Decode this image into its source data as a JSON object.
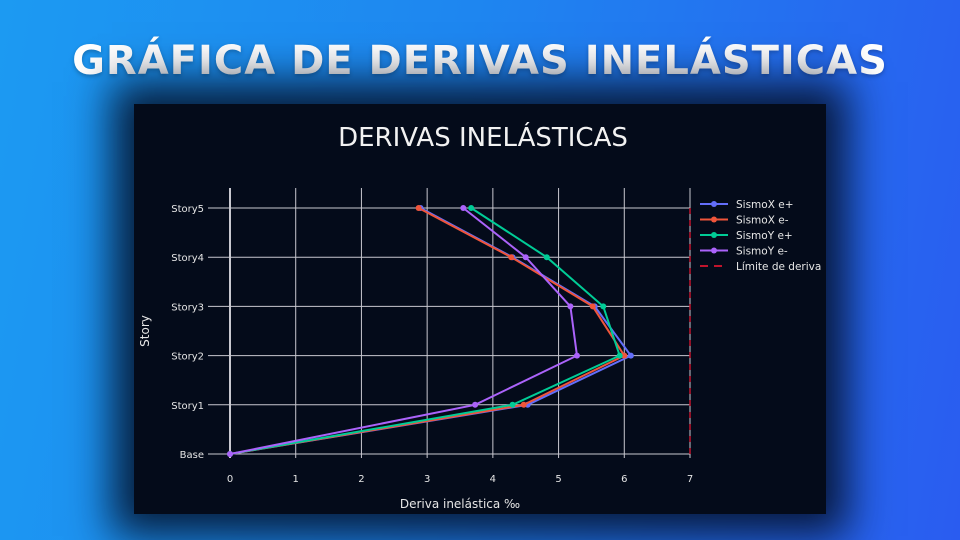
{
  "page": {
    "headline": "GRÁFICA DE DERIVAS INELÁSTICAS"
  },
  "colors": {
    "background_left": "#1c9af2",
    "background_right": "#2a5cf0",
    "panel": "#040b1a",
    "grid": "#c8c8d0",
    "limit": "#c0142c"
  },
  "chart_data": {
    "type": "line",
    "title": "DERIVAS INELÁSTICAS",
    "xlabel": "Deriva inelástica ‰",
    "ylabel": "Story",
    "xlim": [
      0,
      7
    ],
    "xticks": [
      0,
      1,
      2,
      3,
      4,
      5,
      6,
      7
    ],
    "categories": [
      "Base",
      "Story1",
      "Story2",
      "Story3",
      "Story4",
      "Story5"
    ],
    "grid": true,
    "legend_position": "right",
    "series": [
      {
        "name": "SismoX e+",
        "color": "#636efa",
        "values": [
          0,
          4.53,
          6.1,
          5.55,
          4.3,
          2.9
        ]
      },
      {
        "name": "SismoX e-",
        "color": "#ef553b",
        "values": [
          0,
          4.47,
          6.0,
          5.52,
          4.28,
          2.87
        ]
      },
      {
        "name": "SismoY e+",
        "color": "#00cc96",
        "values": [
          0,
          4.3,
          5.93,
          5.68,
          4.82,
          3.67
        ]
      },
      {
        "name": "SismoY e-",
        "color": "#ab63fa",
        "values": [
          0,
          3.73,
          5.28,
          5.18,
          4.5,
          3.55
        ]
      },
      {
        "name": "Límite de deriva",
        "color": "#c0142c",
        "dash": true,
        "values": [
          7,
          7,
          7,
          7,
          7,
          7
        ]
      }
    ]
  }
}
